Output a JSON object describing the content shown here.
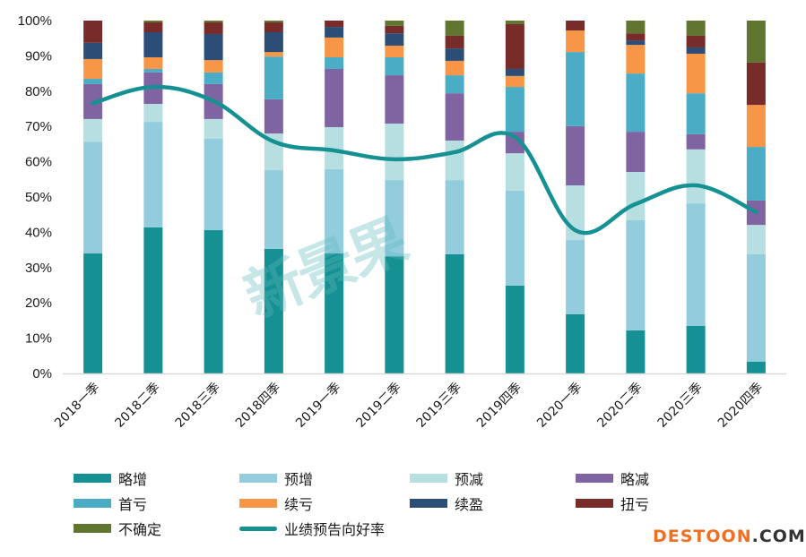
{
  "chart_data": {
    "type": "bar",
    "stacked": true,
    "normalized": true,
    "title": "",
    "xlabel": "",
    "ylabel": "",
    "ylim": [
      0,
      100
    ],
    "yticks": [
      "0%",
      "10%",
      "20%",
      "30%",
      "40%",
      "50%",
      "60%",
      "70%",
      "80%",
      "90%",
      "100%"
    ],
    "grid": false,
    "legend_position": "bottom",
    "categories": [
      "2018一季",
      "2018二季",
      "2018三季",
      "2018四季",
      "2019一季",
      "2019二季",
      "2019三季",
      "2019四季",
      "2020一季",
      "2020二季",
      "2020三季",
      "2020四季"
    ],
    "series": [
      {
        "name": "略增",
        "color": "#169193",
        "values": [
          34.0,
          41.4,
          40.6,
          35.3,
          34.0,
          33.2,
          33.8,
          24.9,
          16.8,
          12.2,
          13.5,
          3.3
        ]
      },
      {
        "name": "预增",
        "color": "#93CDDD",
        "values": [
          31.7,
          29.9,
          25.9,
          22.3,
          23.9,
          21.6,
          21.0,
          26.9,
          21.0,
          31.2,
          34.7,
          30.5
        ]
      },
      {
        "name": "预减",
        "color": "#B7DEE1",
        "values": [
          6.4,
          5.1,
          5.6,
          10.4,
          11.9,
          16.0,
          11.2,
          10.6,
          15.5,
          13.7,
          15.3,
          8.3
        ]
      },
      {
        "name": "略减",
        "color": "#8064A2",
        "values": [
          9.9,
          8.9,
          9.9,
          9.7,
          16.5,
          13.7,
          13.4,
          6.1,
          16.8,
          11.4,
          4.3,
          6.9
        ]
      },
      {
        "name": "首亏",
        "color": "#4BACC6",
        "values": [
          1.5,
          1.0,
          3.3,
          12.1,
          3.3,
          5.1,
          5.1,
          12.7,
          21.0,
          16.5,
          11.6,
          15.2
        ]
      },
      {
        "name": "续亏",
        "color": "#F79646",
        "values": [
          5.6,
          3.3,
          3.5,
          1.3,
          5.6,
          3.3,
          4.1,
          3.1,
          6.1,
          8.1,
          11.2,
          11.9
        ]
      },
      {
        "name": "续盈",
        "color": "#2C4D75",
        "values": [
          4.6,
          7.1,
          7.4,
          5.6,
          3.0,
          3.5,
          3.5,
          2.0,
          0,
          1.3,
          1.8,
          0
        ]
      },
      {
        "name": "扭亏",
        "color": "#772C2A",
        "values": [
          6.3,
          2.8,
          3.3,
          2.8,
          1.8,
          2.1,
          3.6,
          12.7,
          2.8,
          2.0,
          3.3,
          12.0
        ]
      },
      {
        "name": "不确定",
        "color": "#5F7530",
        "values": [
          0,
          0.5,
          0.5,
          0.5,
          0,
          1.5,
          4.3,
          1.0,
          0,
          3.6,
          4.3,
          11.9
        ]
      }
    ],
    "line_series": {
      "name": "业绩预告向好率",
      "color": "#169193",
      "values": [
        76.6,
        81.2,
        77.2,
        65.7,
        63.2,
        60.7,
        62.7,
        67.0,
        40.6,
        48.0,
        53.3,
        45.7
      ]
    }
  },
  "watermark": "新景果",
  "brand": {
    "part1": "DESTOON",
    "part2": ".COM"
  }
}
